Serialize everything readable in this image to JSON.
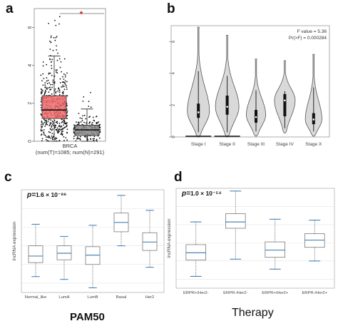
{
  "panels": [
    {
      "letter": "a"
    },
    {
      "letter": "b"
    },
    {
      "letter": "c"
    },
    {
      "letter": "d"
    }
  ],
  "chart_data": [
    {
      "panel": "a",
      "type": "box",
      "ylim": [
        0,
        7
      ],
      "yticks": [
        "0",
        "2",
        "4",
        "6"
      ],
      "xlabel_line1": "BRCA",
      "xlabel_line2": "(num(T)=1085; num(N)=291)",
      "significance_marker": "*",
      "series": [
        {
          "q1": 1.2,
          "median": 1.65,
          "q3": 2.4,
          "whisker_low": 0.0,
          "whisker_high": 4.5,
          "color": "#f26b6b",
          "n": 1085,
          "jitter_max": 6.6
        },
        {
          "q1": 0.3,
          "median": 0.6,
          "q3": 0.85,
          "whisker_low": 0.0,
          "whisker_high": 1.7,
          "color": "#8c8c8c",
          "n": 291,
          "jitter_max": 2.7
        }
      ]
    },
    {
      "panel": "b",
      "type": "violin",
      "ylim": [
        0,
        7
      ],
      "yticks": [
        "0",
        "2",
        "4",
        "6"
      ],
      "categories": [
        "Stage I",
        "Stage II",
        "Stage III",
        "Stage IV",
        "Stage X"
      ],
      "annotation_line1": "F value = 5.36",
      "annotation_line2": "Pr(>F) = 0.000284",
      "series": [
        {
          "min": 0.0,
          "max": 6.9,
          "q1": 1.2,
          "median": 1.55,
          "q3": 2.1,
          "peak": 1.6,
          "width": 0.8
        },
        {
          "min": 0.0,
          "max": 6.4,
          "q1": 1.4,
          "median": 1.9,
          "q3": 2.6,
          "peak": 1.9,
          "width": 0.85
        },
        {
          "min": 0.05,
          "max": 4.9,
          "q1": 0.9,
          "median": 1.25,
          "q3": 1.7,
          "peak": 1.4,
          "width": 0.7
        },
        {
          "min": 0.25,
          "max": 4.8,
          "q1": 1.3,
          "median": 2.3,
          "q3": 2.7,
          "peak": 2.3,
          "width": 0.75
        },
        {
          "min": 0.05,
          "max": 5.2,
          "q1": 0.8,
          "median": 1.1,
          "q3": 1.5,
          "peak": 1.1,
          "width": 0.6
        }
      ]
    },
    {
      "panel": "c",
      "type": "box",
      "ylabel": "lncRNA expression",
      "ylim": [
        -7,
        4
      ],
      "p_prefix": "p=",
      "p_value": "1.6 × 10⁻⁸⁶",
      "categories": [
        "Normal_like",
        "LumA",
        "LumB",
        "Basal",
        "Her2"
      ],
      "group_label": "PAM50",
      "series": [
        {
          "whisker_low": -5.3,
          "q1": -3.8,
          "median": -3.1,
          "q3": -2.0,
          "whisker_high": 0.3
        },
        {
          "whisker_low": -5.6,
          "q1": -3.5,
          "median": -2.8,
          "q3": -2.0,
          "whisker_high": -1.0
        },
        {
          "whisker_low": -6.5,
          "q1": -4.0,
          "median": -3.0,
          "q3": -2.1,
          "whisker_high": 0.2
        },
        {
          "whisker_low": -2.0,
          "q1": -0.5,
          "median": 0.5,
          "q3": 1.5,
          "whisker_high": 3.4
        },
        {
          "whisker_low": -4.3,
          "q1": -2.5,
          "median": -1.6,
          "q3": -0.6,
          "whisker_high": 1.8
        }
      ]
    },
    {
      "panel": "d",
      "type": "box",
      "ylabel": "lncRNA expression",
      "ylim": [
        -7,
        4
      ],
      "p_prefix": "p=",
      "p_value": "1.0 × 10⁻⁵⁴",
      "categories": [
        "ERPR+/Her2-",
        "ERPR-/Her2-",
        "ERPR+/Her2+",
        "ERPR-/Her2+"
      ],
      "group_label": "Therapy",
      "series": [
        {
          "whisker_low": -5.7,
          "q1": -3.9,
          "median": -3.1,
          "q3": -2.2,
          "whisker_high": 0.3
        },
        {
          "whisker_low": -3.8,
          "q1": -0.4,
          "median": 0.3,
          "q3": 1.2,
          "whisker_high": 3.7
        },
        {
          "whisker_low": -4.9,
          "q1": -3.6,
          "median": -2.8,
          "q3": -1.9,
          "whisker_high": 0.6
        },
        {
          "whisker_low": -4.0,
          "q1": -2.5,
          "median": -1.7,
          "q3": -1.0,
          "whisker_high": 0.5
        }
      ]
    }
  ]
}
